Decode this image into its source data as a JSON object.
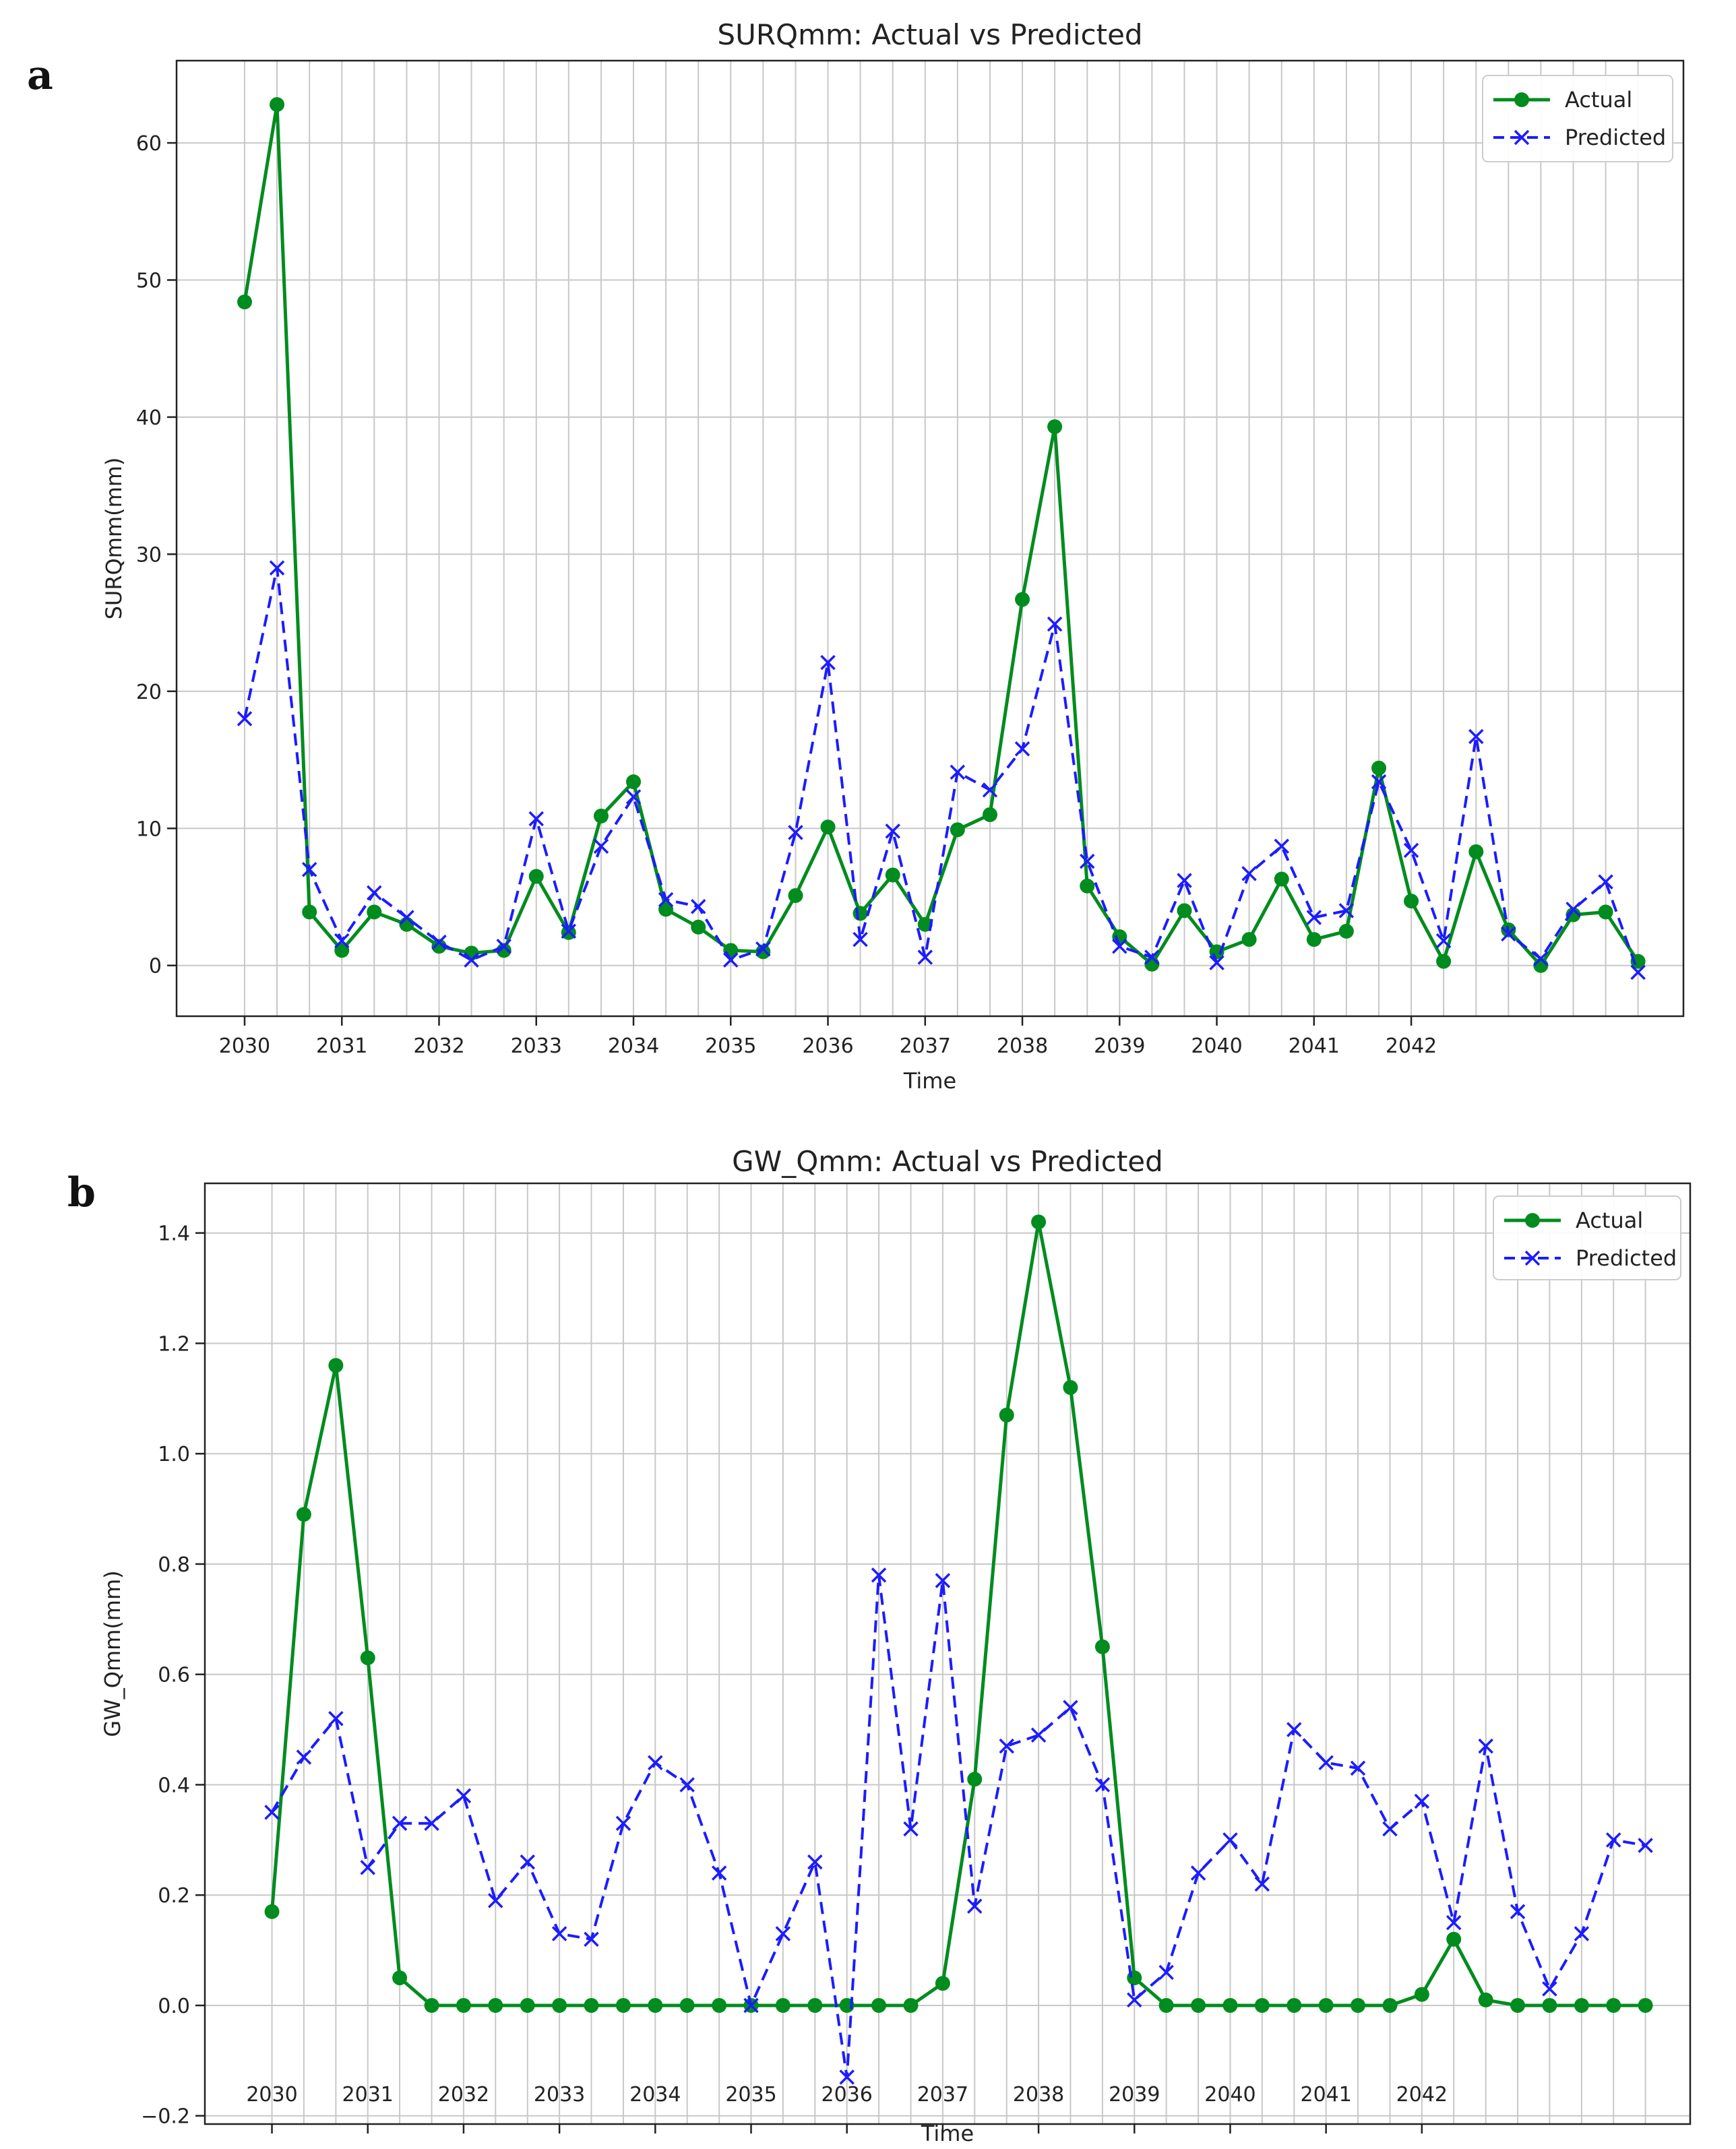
{
  "panel_labels": [
    "a",
    "b"
  ],
  "chart_data": [
    {
      "type": "line",
      "title": "SURQmm: Actual vs Predicted",
      "xlabel": "Time",
      "ylabel": "SURQmm(mm)",
      "xlim": [
        2029.3,
        2044.8
      ],
      "ylim": [
        -3.7,
        66
      ],
      "grid": true,
      "legend": "top-right",
      "xticks": [
        2030,
        2031,
        2032,
        2033,
        2034,
        2035,
        2036,
        2037,
        2038,
        2039,
        2040,
        2041,
        2042
      ],
      "xtick_labels": [
        "2030",
        "2031",
        "2032",
        "2033",
        "2034",
        "2035",
        "2036",
        "2037",
        "2038",
        "2039",
        "2040",
        "2041",
        "2042"
      ],
      "yticks": [
        0,
        10,
        20,
        30,
        40,
        50,
        60
      ],
      "ytick_labels": [
        "0",
        "10",
        "20",
        "30",
        "40",
        "50",
        "60"
      ],
      "x": [
        2030.0,
        2030.333,
        2030.667,
        2031.0,
        2031.333,
        2031.667,
        2032.0,
        2032.333,
        2032.667,
        2033.0,
        2033.333,
        2033.667,
        2034.0,
        2034.333,
        2034.667,
        2035.0,
        2035.333,
        2035.667,
        2036.0,
        2036.333,
        2036.667,
        2037.0,
        2037.333,
        2037.667,
        2038.0,
        2038.333,
        2038.667,
        2039.0,
        2039.333,
        2039.667,
        2040.0,
        2040.333,
        2040.667,
        2041.0,
        2041.333,
        2041.667,
        2042.0,
        2042.333,
        2042.667,
        2043.0,
        2043.333,
        2043.667,
        2044.0,
        2044.333
      ],
      "series": [
        {
          "name": "Actual",
          "color": "#008c1e",
          "style": "solid",
          "marker": "circle",
          "values": [
            48.4,
            62.8,
            3.9,
            1.1,
            3.9,
            3.0,
            1.4,
            0.9,
            1.1,
            6.5,
            2.4,
            10.9,
            13.4,
            4.1,
            2.8,
            1.1,
            1.0,
            5.1,
            10.1,
            3.8,
            6.6,
            3.0,
            9.9,
            11.0,
            26.7,
            39.3,
            5.8,
            2.1,
            0.1,
            4.0,
            1.0,
            1.9,
            6.3,
            1.9,
            2.5,
            14.4,
            4.7,
            0.3,
            8.3,
            2.6,
            0.0,
            3.7,
            3.9,
            0.3
          ]
        },
        {
          "name": "Predicted",
          "color": "#1c1cff",
          "style": "dashed",
          "marker": "x",
          "values": [
            18.0,
            29.0,
            7.0,
            1.8,
            5.3,
            3.5,
            1.7,
            0.4,
            1.4,
            10.7,
            2.5,
            8.7,
            12.3,
            4.8,
            4.3,
            0.4,
            1.2,
            9.7,
            22.1,
            1.9,
            9.8,
            0.6,
            14.1,
            12.8,
            15.8,
            24.9,
            7.6,
            1.4,
            0.6,
            6.2,
            0.2,
            6.7,
            8.7,
            3.5,
            4.0,
            13.4,
            8.4,
            1.8,
            16.7,
            2.3,
            0.5,
            4.1,
            6.1,
            -0.5
          ]
        }
      ]
    },
    {
      "type": "line",
      "title": "GW_Qmm: Actual vs Predicted",
      "xlabel": "Time",
      "ylabel": "GW_Qmm(mm)",
      "xlim": [
        2029.3,
        2044.8
      ],
      "ylim": [
        -0.215,
        1.49
      ],
      "grid": true,
      "legend": "top-right",
      "xticks": [
        2030,
        2031,
        2032,
        2033,
        2034,
        2035,
        2036,
        2037,
        2038,
        2039,
        2040,
        2041,
        2042
      ],
      "xtick_labels": [
        "2030",
        "2031",
        "2032",
        "2033",
        "2034",
        "2035",
        "2036",
        "2037",
        "2038",
        "2039",
        "2040",
        "2041",
        "2042"
      ],
      "yticks": [
        -0.2,
        0.0,
        0.2,
        0.4,
        0.6,
        0.8,
        1.0,
        1.2,
        1.4
      ],
      "ytick_labels": [
        "−0.2",
        "0.0",
        "0.2",
        "0.4",
        "0.6",
        "0.8",
        "1.0",
        "1.2",
        "1.4"
      ],
      "x": [
        2030.0,
        2030.333,
        2030.667,
        2031.0,
        2031.333,
        2031.667,
        2032.0,
        2032.333,
        2032.667,
        2033.0,
        2033.333,
        2033.667,
        2034.0,
        2034.333,
        2034.667,
        2035.0,
        2035.333,
        2035.667,
        2036.0,
        2036.333,
        2036.667,
        2037.0,
        2037.333,
        2037.667,
        2038.0,
        2038.333,
        2038.667,
        2039.0,
        2039.333,
        2039.667,
        2040.0,
        2040.333,
        2040.667,
        2041.0,
        2041.333,
        2041.667,
        2042.0,
        2042.333,
        2042.667,
        2043.0,
        2043.333,
        2043.667,
        2044.0,
        2044.333
      ],
      "series": [
        {
          "name": "Actual",
          "color": "#008c1e",
          "style": "solid",
          "marker": "circle",
          "values": [
            0.17,
            0.89,
            1.16,
            0.63,
            0.05,
            0.0,
            0.0,
            0.0,
            0.0,
            0.0,
            0.0,
            0.0,
            0.0,
            0.0,
            0.0,
            0.0,
            0.0,
            0.0,
            0.0,
            0.0,
            0.0,
            0.04,
            0.41,
            1.07,
            1.42,
            1.12,
            0.65,
            0.05,
            0.0,
            0.0,
            0.0,
            0.0,
            0.0,
            0.0,
            0.0,
            0.0,
            0.02,
            0.12,
            0.01,
            0.0,
            0.0,
            0.0,
            0.0,
            0.0
          ]
        },
        {
          "name": "Predicted",
          "color": "#1c1cff",
          "style": "dashed",
          "marker": "x",
          "values": [
            0.35,
            0.45,
            0.52,
            0.25,
            0.33,
            0.33,
            0.38,
            0.19,
            0.26,
            0.13,
            0.12,
            0.33,
            0.44,
            0.4,
            0.24,
            0.0,
            0.13,
            0.26,
            -0.13,
            0.78,
            0.32,
            0.77,
            0.18,
            0.47,
            0.49,
            0.54,
            0.4,
            0.01,
            0.06,
            0.24,
            0.3,
            0.22,
            0.5,
            0.44,
            0.43,
            0.32,
            0.37,
            0.15,
            0.47,
            0.17,
            0.03,
            0.13,
            0.3,
            0.29
          ]
        }
      ]
    }
  ]
}
